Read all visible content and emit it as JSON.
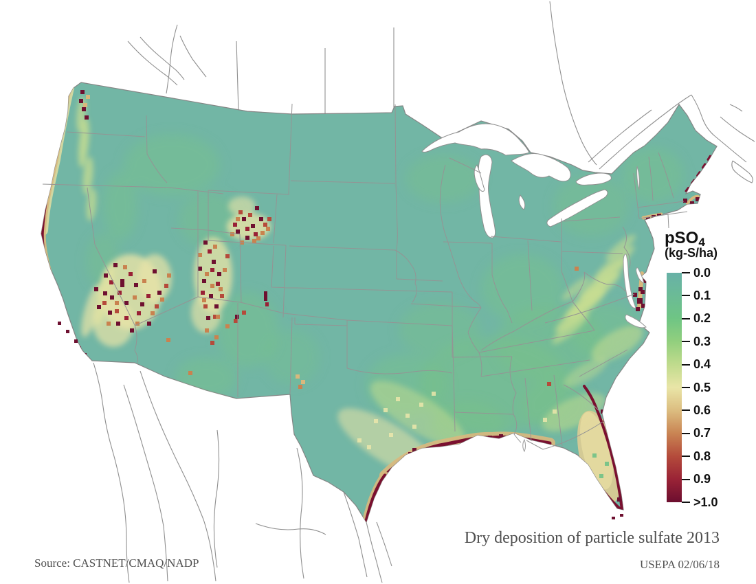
{
  "legend": {
    "title_main": "pSO",
    "title_subscript": "4",
    "units": "(kg-S/ha)",
    "ticks": [
      "0.0",
      "0.1",
      "0.2",
      "0.3",
      "0.4",
      "0.5",
      "0.6",
      "0.7",
      "0.8",
      "0.9",
      ">1.0"
    ],
    "ramp": [
      {
        "value": "0.0",
        "color": "#68b1a7"
      },
      {
        "value": "0.1",
        "color": "#6bbb96"
      },
      {
        "value": "0.2",
        "color": "#6fc584"
      },
      {
        "value": "0.3",
        "color": "#92cf7e"
      },
      {
        "value": "0.4",
        "color": "#c0db8d"
      },
      {
        "value": "0.5",
        "color": "#e9e5a7"
      },
      {
        "value": "0.6",
        "color": "#dcbd80"
      },
      {
        "value": "0.7",
        "color": "#c98453"
      },
      {
        "value": "0.8",
        "color": "#b44b3b"
      },
      {
        "value": "0.9",
        "color": "#9a2336"
      },
      {
        "value": ">1.0",
        "color": "#6c0e2f"
      }
    ]
  },
  "annotations": {
    "title": "Dry deposition of particle sulfate 2013",
    "source": "Source: CASTNET/CMAQ/NADP",
    "credit": "USEPA 02/06/18"
  },
  "map": {
    "region": "Continental United States",
    "base_color": "#72b6a5",
    "country_line_color": "#8f8f8f",
    "state_line_color": "#949494",
    "water_color": "#ffffff"
  }
}
